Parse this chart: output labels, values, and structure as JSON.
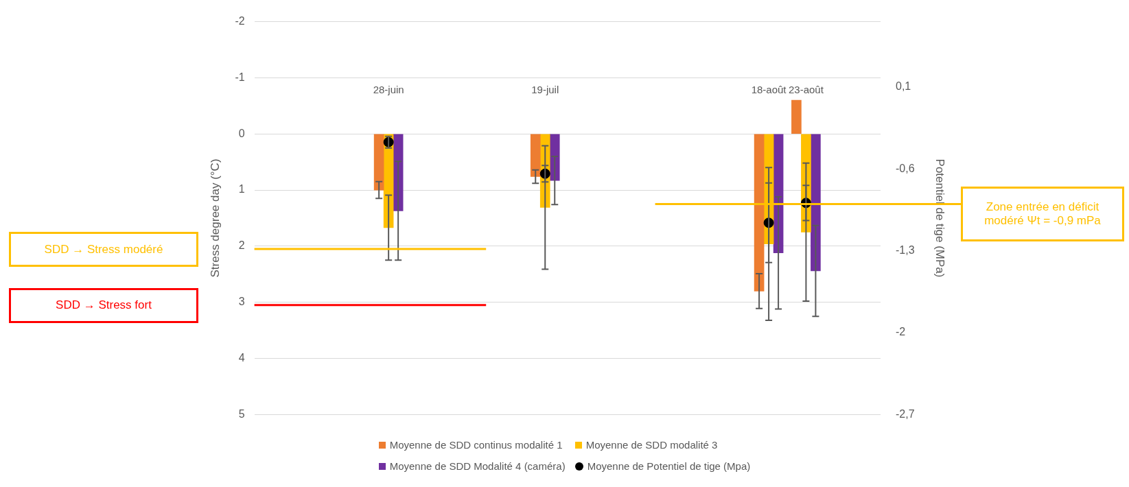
{
  "chart_data": {
    "type": "bar",
    "x": [
      "--06-28",
      "--07-19",
      "--08-18",
      "--08-23"
    ],
    "xlim": [
      "--06-10",
      "--09-02"
    ],
    "xticks": [
      {
        "value": "--06-28",
        "label": "28-juin"
      },
      {
        "value": "--07-19",
        "label": "19-juil"
      },
      {
        "value": "--08-18",
        "label": "18-août"
      },
      {
        "value": "--08-23",
        "label": "23-août"
      }
    ],
    "ylabel": "Stress degree day (°C)",
    "y2label": "Potentiel de tige (MPa)",
    "ylim": [
      5,
      -2
    ],
    "yticks": [
      -2,
      -1,
      0,
      1,
      2,
      3,
      4,
      5
    ],
    "y2lim": [
      -2.7,
      0.66
    ],
    "y2ticks": [
      {
        "value": -2.7,
        "label": "-2,7"
      },
      {
        "value": -2,
        "label": "-2"
      },
      {
        "value": -1.3,
        "label": "-1,3"
      },
      {
        "value": -0.6,
        "label": "-0,6"
      },
      {
        "value": 0.1,
        "label": "0,1"
      }
    ],
    "grid": "y",
    "legend": "bottom",
    "series": [
      {
        "name": "Moyenne de SDD continus modalité 1",
        "color": "#ed7d31",
        "values": [
          1.0,
          0.76,
          2.8,
          -0.6
        ],
        "errors": [
          0.15,
          0.12,
          0.31,
          null
        ]
      },
      {
        "name": "Moyenne de SDD modalité 3",
        "color": "#ffc000",
        "values": [
          1.67,
          1.31,
          1.96,
          1.75
        ],
        "errors": [
          0.58,
          1.1,
          1.36,
          1.23
        ]
      },
      {
        "name": "Moyenne de SDD Modalité 4 (caméra)",
        "color": "#7030a0",
        "values": [
          1.37,
          0.83,
          2.12,
          2.44
        ],
        "errors": [
          0.88,
          0.43,
          1.0,
          0.81
        ]
      },
      {
        "name": "Moyenne de Potentiel de tige (Mpa)",
        "type": "scatter",
        "axis": "y2",
        "marker": "circle",
        "color": "#000000",
        "values": [
          -0.37,
          -0.64,
          -1.06,
          -0.89
        ],
        "errors": [
          0.05,
          0.07,
          0.34,
          0.15
        ]
      }
    ],
    "ref_lines": [
      {
        "axis": "y",
        "value": 2.05,
        "label": "SDD → Stress modéré",
        "color": "#ffc000"
      },
      {
        "axis": "y",
        "value": 3.05,
        "label": "SDD → Stress fort",
        "color": "#ff0000"
      },
      {
        "axis": "y2",
        "value": -0.9,
        "label": "Zone entrée en déficit modéré Ψt = -0,9 mPa",
        "color": "#ffc000"
      }
    ]
  }
}
